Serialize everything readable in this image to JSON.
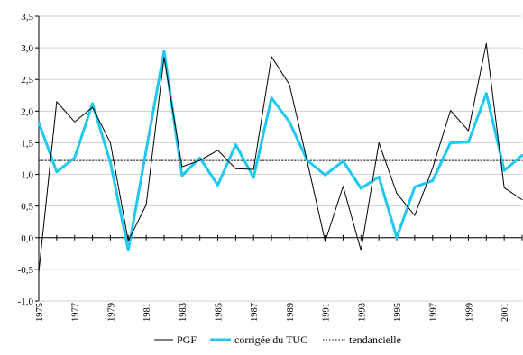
{
  "chart_data": {
    "type": "line",
    "title": "",
    "xlabel": "",
    "ylabel": "",
    "ylim": [
      -1.0,
      3.5
    ],
    "y_ticks": [
      "3,5",
      "3,0",
      "2,5",
      "2,0",
      "1,5",
      "1,0",
      "0,5",
      "0,0",
      "-0,5",
      "-1,0"
    ],
    "y_tick_values": [
      3.5,
      3.0,
      2.5,
      2.0,
      1.5,
      1.0,
      0.5,
      0.0,
      -0.5,
      -1.0
    ],
    "x_years": [
      1975,
      1976,
      1977,
      1978,
      1979,
      1980,
      1981,
      1982,
      1983,
      1984,
      1985,
      1986,
      1987,
      1988,
      1989,
      1990,
      1991,
      1992,
      1993,
      1994,
      1995,
      1996,
      1997,
      1998,
      1999,
      2000,
      2001,
      2002
    ],
    "x_tick_labels": [
      "1975",
      "1977",
      "1979",
      "1981",
      "1983",
      "1985",
      "1987",
      "1989",
      "1991",
      "1993",
      "1995",
      "1997",
      "1999",
      "2001"
    ],
    "x_tick_label_years": [
      1975,
      1977,
      1979,
      1981,
      1983,
      1985,
      1987,
      1989,
      1991,
      1993,
      1995,
      1997,
      1999,
      2001
    ],
    "grid": "horizontal",
    "legend_position": "bottom",
    "series": [
      {
        "name": "PGF",
        "color": "#000000",
        "style": "thin-solid",
        "values": [
          -0.55,
          2.15,
          1.83,
          2.06,
          1.5,
          -0.05,
          0.52,
          2.85,
          1.12,
          1.22,
          1.38,
          1.09,
          1.08,
          2.86,
          2.42,
          1.2,
          -0.06,
          0.81,
          -0.2,
          1.5,
          0.7,
          0.35,
          1.1,
          2.01,
          1.69,
          3.07,
          0.79,
          0.6
        ]
      },
      {
        "name": "corrigée du TUC",
        "color": "#1ec8f0",
        "style": "thick-solid",
        "values": [
          1.82,
          1.04,
          1.26,
          2.12,
          1.19,
          -0.2,
          1.38,
          2.95,
          0.98,
          1.26,
          0.83,
          1.47,
          0.95,
          2.21,
          1.83,
          1.22,
          0.99,
          1.21,
          0.78,
          0.96,
          0.0,
          0.8,
          0.9,
          1.5,
          1.51,
          2.28,
          1.06,
          1.3
        ]
      },
      {
        "name": "tendancielle",
        "color": "#000000",
        "style": "dotted",
        "values": [
          1.22,
          1.22,
          1.22,
          1.22,
          1.22,
          1.22,
          1.22,
          1.22,
          1.22,
          1.22,
          1.22,
          1.22,
          1.22,
          1.22,
          1.22,
          1.22,
          1.22,
          1.22,
          1.22,
          1.22,
          1.22,
          1.22,
          1.22,
          1.22,
          1.22,
          1.22,
          1.22,
          1.22
        ]
      }
    ]
  }
}
